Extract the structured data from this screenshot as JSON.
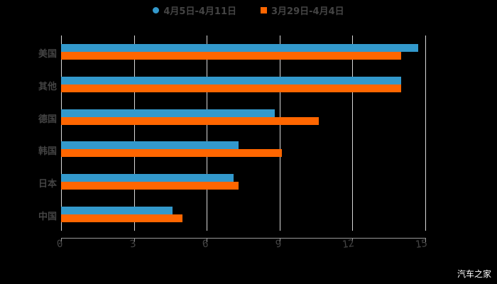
{
  "legend": {
    "series1": "4月5日-4月11日",
    "series2": "3月29日-4月4日"
  },
  "colors": {
    "series1": "#3399cc",
    "series2": "#ff6600"
  },
  "watermark": "汽车之家",
  "chart_data": {
    "type": "bar",
    "orientation": "horizontal",
    "title": "",
    "xlabel": "",
    "ylabel": "",
    "categories": [
      "美国",
      "其他",
      "德国",
      "韩国",
      "日本",
      "中国"
    ],
    "series": [
      {
        "name": "4月5日-4月11日",
        "color": "#3399cc",
        "values": [
          14.7,
          14.0,
          8.8,
          7.3,
          7.1,
          4.6
        ]
      },
      {
        "name": "3月29日-4月4日",
        "color": "#ff6600",
        "values": [
          14.0,
          14.0,
          10.6,
          9.1,
          7.3,
          5.0
        ]
      }
    ],
    "xticks": [
      "0",
      "3",
      "6",
      "9",
      "12",
      "15"
    ],
    "xlim": [
      0,
      15
    ],
    "grid": true,
    "legend_position": "top"
  }
}
